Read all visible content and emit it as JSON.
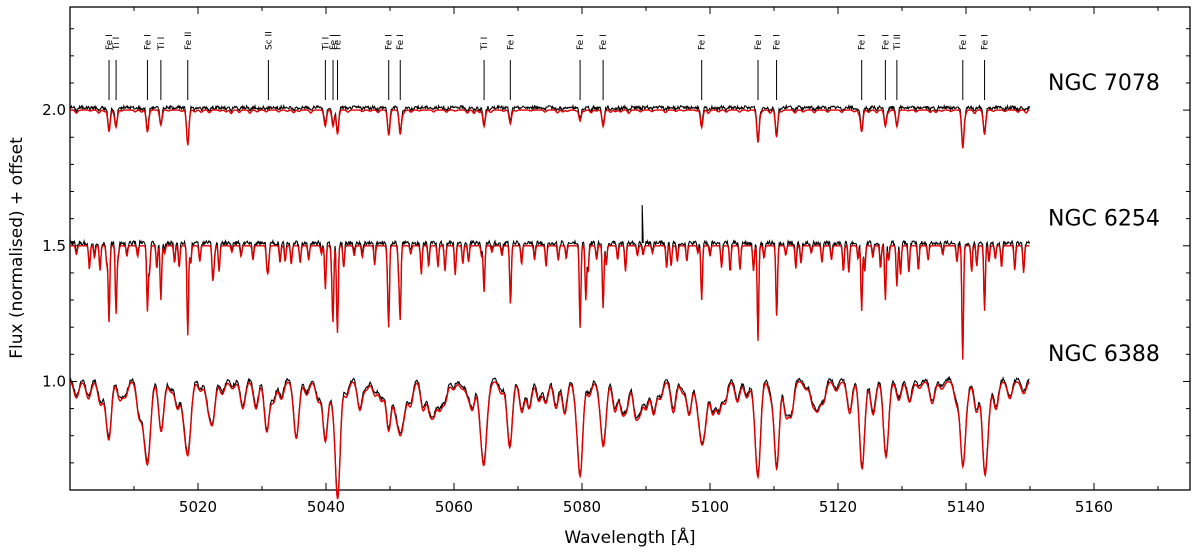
{
  "chart_data": {
    "type": "line",
    "xlabel": "Wavelength [Å]",
    "ylabel": "Flux (normalised) + offset",
    "xlim": [
      5000,
      5175
    ],
    "ylim": [
      0.6,
      2.38
    ],
    "xticks": [
      5020,
      5040,
      5060,
      5080,
      5100,
      5120,
      5140,
      5160
    ],
    "yticks": [
      1.0,
      1.5,
      2.0
    ],
    "ytick_labels": [
      "1.0",
      "1.5",
      "2.0"
    ],
    "colors": {
      "observed": "#000000",
      "model": "#e00000"
    },
    "spectra": [
      {
        "name": "NGC 7078",
        "offset": 2.0
      },
      {
        "name": "NGC 6254",
        "offset": 1.5
      },
      {
        "name": "NGC 6388",
        "offset": 1.0
      }
    ],
    "line_ids": [
      {
        "label": "Fe I",
        "wavelength": 5006.1
      },
      {
        "label": "Ti I",
        "wavelength": 5007.2
      },
      {
        "label": "Fe I",
        "wavelength": 5012.1
      },
      {
        "label": "Ti I",
        "wavelength": 5014.2
      },
      {
        "label": "Fe II",
        "wavelength": 5018.4
      },
      {
        "label": "Sc II",
        "wavelength": 5031.0
      },
      {
        "label": "Ti I",
        "wavelength": 5039.9
      },
      {
        "label": "Fe I",
        "wavelength": 5041.1
      },
      {
        "label": "Fe I",
        "wavelength": 5041.8
      },
      {
        "label": "Fe I",
        "wavelength": 5049.8
      },
      {
        "label": "Fe I",
        "wavelength": 5051.6
      },
      {
        "label": "Ti I",
        "wavelength": 5064.7
      },
      {
        "label": "Fe I",
        "wavelength": 5068.8
      },
      {
        "label": "Fe I",
        "wavelength": 5079.7
      },
      {
        "label": "Fe I",
        "wavelength": 5083.3
      },
      {
        "label": "Fe I",
        "wavelength": 5098.7
      },
      {
        "label": "Fe I",
        "wavelength": 5107.5
      },
      {
        "label": "Fe I",
        "wavelength": 5110.4
      },
      {
        "label": "Fe I",
        "wavelength": 5123.7
      },
      {
        "label": "Fe I",
        "wavelength": 5127.4
      },
      {
        "label": "Ti II",
        "wavelength": 5129.2
      },
      {
        "label": "Fe I",
        "wavelength": 5139.5
      },
      {
        "label": "Fe I",
        "wavelength": 5142.9
      }
    ]
  }
}
